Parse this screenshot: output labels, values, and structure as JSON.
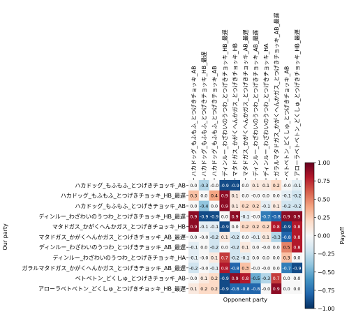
{
  "chart_data": {
    "type": "heatmap",
    "title": "",
    "xlabel": "Opponent party",
    "ylabel": "Our party",
    "colorbar_label": "Payoff",
    "vmin": -1.0,
    "vmax": 1.0,
    "colorbar_ticks": [
      "1.00",
      "0.75",
      "0.50",
      "0.25",
      "0.00",
      "−0.25",
      "−0.50",
      "−0.75",
      "−1.00"
    ],
    "colormap": "RdBu_r",
    "grid": false,
    "legend": "colorbar-right",
    "x_labels": [
      "ハカドッグ_もふもふ_とつげきチョッキ_AB",
      "ハカドッグ_もふもふ_とつげきチョッキ_HB_最遅",
      "ハカドッグ_もふもふ_とつげきチョッキ_AB",
      "ディンルー_わざわいのうつわ_とつげきチョッキ_HB_最遅",
      "マタドガス_かがくへんかガス_とつげきチョッキ_HB",
      "マタドガス_かがくへんかガス_とつげきチョッキ_AB_最遅",
      "ディンルー_わざわいのうつわ_とつげきチョッキ_AB_最遅",
      "ディンルー_わざわいのうつわ_とつげきチョッキ_HA",
      "ガラルマタドガス_かがくへんかガス_とつげきチョッキ_AB_最遅",
      "ベトベトン_どくしゅ_とつげきチョッキ_AB",
      "アローラベトベトン_どくしゅ_とつげきチョッキ_HB_最遅"
    ],
    "y_labels": [
      "ハカドッグ_もふもふ_とつげきチョッキ_AB",
      "ハカドッグ_もふもふ_とつげきチョッキ_HB_最遅",
      "ハカドッグ_もふもふ_とつげきチョッキ_AB",
      "ディンルー_わざわいのうつわ_とつげきチョッキ_HB_最遅",
      "マタドガス_かがくへんかガス_とつげきチョッキ_HB",
      "マタドガス_かがくへんかガス_とつげきチョッキ_AB_最遅",
      "ディンルー_わざわいのうつわ_とつげきチョッキ_AB_最遅",
      "ディンルー_わざわいのうつわ_とつげきチョッキ_HA",
      "ガラルマタドガス_かがくへんかガス_とつげきチョッキ_AB_最遅",
      "ベトベトン_どくしゅ_とつげきチョッキ_AB",
      "アローラベトベトン_どくしゅ_とつげきチョッキ_HB_最遅"
    ],
    "values": [
      [
        0.0,
        -0.3,
        -0.0,
        -0.9,
        -0.9,
        0.0,
        0.1,
        0.1,
        0.2,
        -0.0,
        -0.1
      ],
      [
        0.3,
        0.0,
        0.4,
        0.9,
        0.1,
        0.0,
        -0.0,
        0.0,
        0.0,
        -0.1,
        -0.2
      ],
      [
        0.0,
        -0.4,
        0.0,
        0.9,
        0.1,
        0.2,
        0.2,
        -0.1,
        0.1,
        -0.2,
        -0.2
      ],
      [
        0.9,
        -0.9,
        -0.9,
        0.0,
        0.9,
        -0.1,
        -0.0,
        -0.7,
        -0.8,
        0.9,
        0.9
      ],
      [
        0.9,
        -0.1,
        -0.1,
        -0.9,
        0.0,
        0.2,
        0.2,
        0.2,
        0.8,
        -0.9,
        0.8
      ],
      [
        0.0,
        -0.0,
        -0.2,
        0.1,
        -0.2,
        0.0,
        -0.1,
        0.1,
        -0.3,
        -0.8,
        0.8
      ],
      [
        -0.1,
        0.0,
        -0.2,
        0.0,
        -0.2,
        0.1,
        0.0,
        -0.0,
        0.0,
        0.5,
        0.8
      ],
      [
        -0.1,
        -0.0,
        0.1,
        0.7,
        -0.2,
        -0.1,
        0.0,
        0.0,
        0.0,
        0.3,
        0.0
      ],
      [
        -0.2,
        -0.0,
        -0.1,
        0.8,
        -0.8,
        0.3,
        -0.0,
        -0.0,
        0.0,
        -0.7,
        -0.9
      ],
      [
        0.0,
        0.1,
        0.2,
        -0.9,
        0.9,
        0.8,
        -0.5,
        -0.3,
        0.7,
        0.0,
        0.0
      ],
      [
        0.1,
        0.2,
        0.2,
        -0.9,
        -0.8,
        -0.8,
        -0.8,
        -0.0,
        0.9,
        0.0,
        0.0
      ]
    ]
  }
}
